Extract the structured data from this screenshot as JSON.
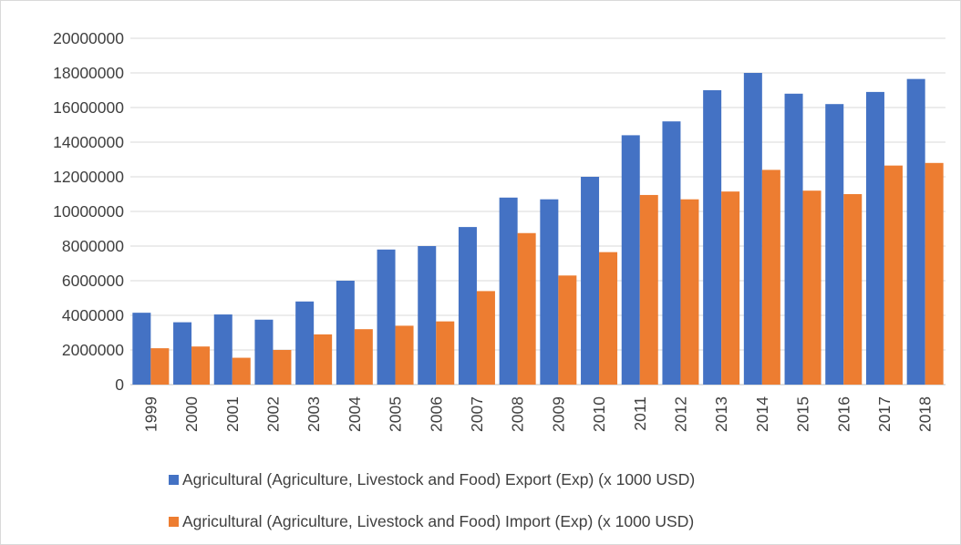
{
  "chart_data": {
    "type": "bar",
    "categories": [
      "1999",
      "2000",
      "2001",
      "2002",
      "2003",
      "2004",
      "2005",
      "2006",
      "2007",
      "2008",
      "2009",
      "2010",
      "2011",
      "2012",
      "2013",
      "2014",
      "2015",
      "2016",
      "2017",
      "2018"
    ],
    "series": [
      {
        "name": "Agricultural (Agriculture, Livestock and Food) Export (Exp) (x 1000 USD)",
        "color": "#4472C4",
        "values": [
          4150000,
          3600000,
          4050000,
          3750000,
          4800000,
          6000000,
          7800000,
          8000000,
          9100000,
          10800000,
          10700000,
          12000000,
          14400000,
          15200000,
          17000000,
          18000000,
          16800000,
          16200000,
          16900000,
          17650000
        ]
      },
      {
        "name": "Agricultural (Agriculture, Livestock and Food) Import (Exp) (x 1000 USD)",
        "color": "#ED7D31",
        "values": [
          2100000,
          2200000,
          1550000,
          2000000,
          2900000,
          3200000,
          3400000,
          3650000,
          5400000,
          8750000,
          6300000,
          7650000,
          10950000,
          10700000,
          11150000,
          12400000,
          11200000,
          11000000,
          12650000,
          12800000
        ]
      }
    ],
    "ylim": [
      0,
      20000000
    ],
    "yticks": [
      "0",
      "2000000",
      "4000000",
      "6000000",
      "8000000",
      "10000000",
      "12000000",
      "14000000",
      "16000000",
      "18000000",
      "20000000"
    ],
    "grid": true,
    "legend_position": "bottom"
  }
}
